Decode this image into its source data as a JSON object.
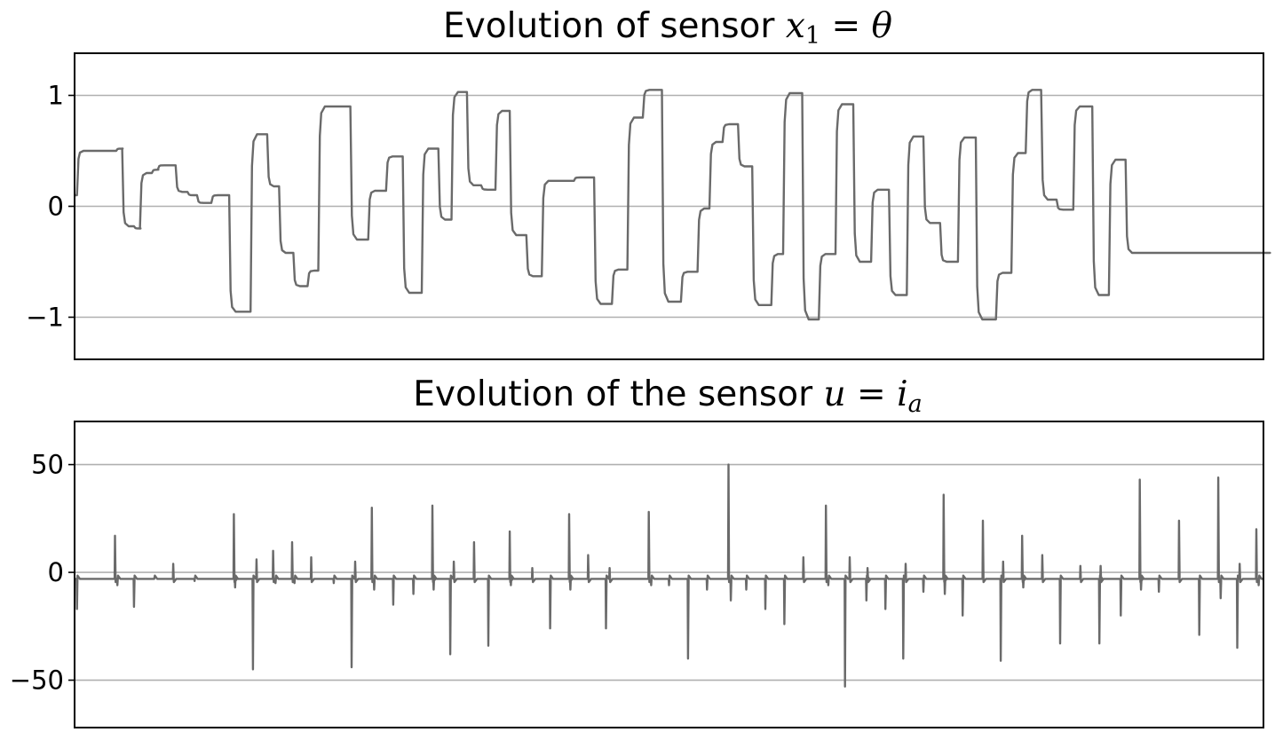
{
  "chart_data": [
    {
      "type": "line",
      "title_prefix": "Evolution of sensor ",
      "title_math": "x",
      "title_math_sub": "1",
      "title_eq": " = ",
      "title_math2": "θ",
      "xlabel": "",
      "ylabel": "",
      "ylim": [
        -1.38,
        1.38
      ],
      "xlim": [
        0,
        1000
      ],
      "grid": "horizontal",
      "yticks": [
        1,
        0,
        -1
      ],
      "ytick_labels": [
        "1",
        "0",
        "−1"
      ],
      "series": [
        {
          "color": "#6a6a6a",
          "levels": [
            [
              0,
              0.1
            ],
            [
              2,
              0.5
            ],
            [
              35,
              0.52
            ],
            [
              40,
              -0.18
            ],
            [
              50,
              -0.2
            ],
            [
              55,
              0.3
            ],
            [
              65,
              0.33
            ],
            [
              70,
              0.37
            ],
            [
              85,
              0.13
            ],
            [
              95,
              0.1
            ],
            [
              103,
              0.03
            ],
            [
              115,
              0.1
            ],
            [
              130,
              -0.95
            ],
            [
              148,
              0.65
            ],
            [
              162,
              0.18
            ],
            [
              172,
              -0.42
            ],
            [
              184,
              -0.72
            ],
            [
              196,
              -0.58
            ],
            [
              205,
              0.9
            ],
            [
              232,
              -0.3
            ],
            [
              247,
              0.14
            ],
            [
              262,
              0.45
            ],
            [
              276,
              -0.78
            ],
            [
              292,
              0.52
            ],
            [
              306,
              -0.12
            ],
            [
              317,
              1.03
            ],
            [
              330,
              0.19
            ],
            [
              342,
              0.15
            ],
            [
              354,
              0.86
            ],
            [
              366,
              -0.26
            ],
            [
              380,
              -0.63
            ],
            [
              393,
              0.23
            ],
            [
              420,
              0.26
            ],
            [
              437,
              -0.88
            ],
            [
              452,
              -0.57
            ],
            [
              465,
              0.8
            ],
            [
              478,
              1.05
            ],
            [
              494,
              -0.86
            ],
            [
              510,
              -0.59
            ],
            [
              524,
              -0.02
            ],
            [
              534,
              0.58
            ],
            [
              545,
              0.74
            ],
            [
              558,
              0.36
            ],
            [
              570,
              -0.89
            ],
            [
              586,
              -0.43
            ],
            [
              596,
              1.02
            ],
            [
              612,
              -1.02
            ],
            [
              626,
              -0.43
            ],
            [
              640,
              0.92
            ],
            [
              655,
              -0.5
            ],
            [
              670,
              0.15
            ],
            [
              685,
              -0.8
            ],
            [
              700,
              0.63
            ],
            [
              714,
              -0.15
            ],
            [
              728,
              -0.5
            ],
            [
              743,
              0.62
            ],
            [
              758,
              -1.02
            ],
            [
              775,
              -0.6
            ],
            [
              788,
              0.48
            ],
            [
              800,
              1.05
            ],
            [
              813,
              0.06
            ],
            [
              826,
              -0.03
            ],
            [
              840,
              0.9
            ],
            [
              856,
              -0.8
            ],
            [
              870,
              0.42
            ],
            [
              884,
              -0.42
            ],
            [
              1000,
              -0.42
            ]
          ]
        }
      ]
    },
    {
      "type": "line",
      "title_prefix": "Evolution of the sensor ",
      "title_math": "u",
      "title_eq": " = ",
      "title_math2": "i",
      "title_math2_sub": "a",
      "xlabel": "",
      "ylabel": "",
      "ylim": [
        -72,
        70
      ],
      "xlim": [
        0,
        1000
      ],
      "grid": "horizontal",
      "yticks": [
        50,
        0,
        -50
      ],
      "ytick_labels": [
        "50",
        "0",
        "−50"
      ],
      "series": [
        {
          "color": "#6a6a6a",
          "baseline": -3,
          "spikes": [
            [
              2,
              -17
            ],
            [
              34,
              17
            ],
            [
              36,
              -6
            ],
            [
              50,
              -16
            ],
            [
              67,
              -3
            ],
            [
              83,
              4
            ],
            [
              101,
              -4
            ],
            [
              134,
              27
            ],
            [
              135,
              -7
            ],
            [
              150,
              -45
            ],
            [
              153,
              6
            ],
            [
              167,
              10
            ],
            [
              169,
              -5
            ],
            [
              183,
              14
            ],
            [
              185,
              -5
            ],
            [
              199,
              7
            ],
            [
              218,
              -5
            ],
            [
              233,
              -44
            ],
            [
              236,
              5
            ],
            [
              250,
              30
            ],
            [
              252,
              -8
            ],
            [
              268,
              -15
            ],
            [
              285,
              -10
            ],
            [
              301,
              31
            ],
            [
              302,
              -8
            ],
            [
              316,
              -38
            ],
            [
              319,
              5
            ],
            [
              336,
              14
            ],
            [
              348,
              -34
            ],
            [
              366,
              19
            ],
            [
              367,
              -6
            ],
            [
              385,
              2
            ],
            [
              400,
              -26
            ],
            [
              416,
              27
            ],
            [
              417,
              -8
            ],
            [
              432,
              8
            ],
            [
              447,
              -26
            ],
            [
              450,
              2
            ],
            [
              483,
              28
            ],
            [
              485,
              -6
            ],
            [
              500,
              -6
            ],
            [
              516,
              -40
            ],
            [
              532,
              -8
            ],
            [
              550,
              50
            ],
            [
              552,
              -13
            ],
            [
              565,
              -8
            ],
            [
              581,
              -17
            ],
            [
              597,
              -24
            ],
            [
              613,
              7
            ],
            [
              632,
              31
            ],
            [
              634,
              -6
            ],
            [
              648,
              -53
            ],
            [
              652,
              7
            ],
            [
              666,
              -13
            ],
            [
              667,
              2
            ],
            [
              682,
              -17
            ],
            [
              697,
              -40
            ],
            [
              699,
              4
            ],
            [
              714,
              -9
            ],
            [
              731,
              36
            ],
            [
              732,
              -10
            ],
            [
              747,
              -20
            ],
            [
              764,
              24
            ],
            [
              779,
              -41
            ],
            [
              781,
              5
            ],
            [
              797,
              17
            ],
            [
              798,
              -7
            ],
            [
              814,
              8
            ],
            [
              829,
              -33
            ],
            [
              846,
              3
            ],
            [
              862,
              -33
            ],
            [
              863,
              3
            ],
            [
              880,
              -20
            ],
            [
              896,
              43
            ],
            [
              897,
              -8
            ],
            [
              912,
              -9
            ],
            [
              929,
              24
            ],
            [
              946,
              -29
            ],
            [
              962,
              44
            ],
            [
              964,
              -12
            ],
            [
              978,
              -35
            ],
            [
              980,
              4
            ],
            [
              994,
              20
            ],
            [
              996,
              -6
            ]
          ]
        }
      ]
    }
  ]
}
